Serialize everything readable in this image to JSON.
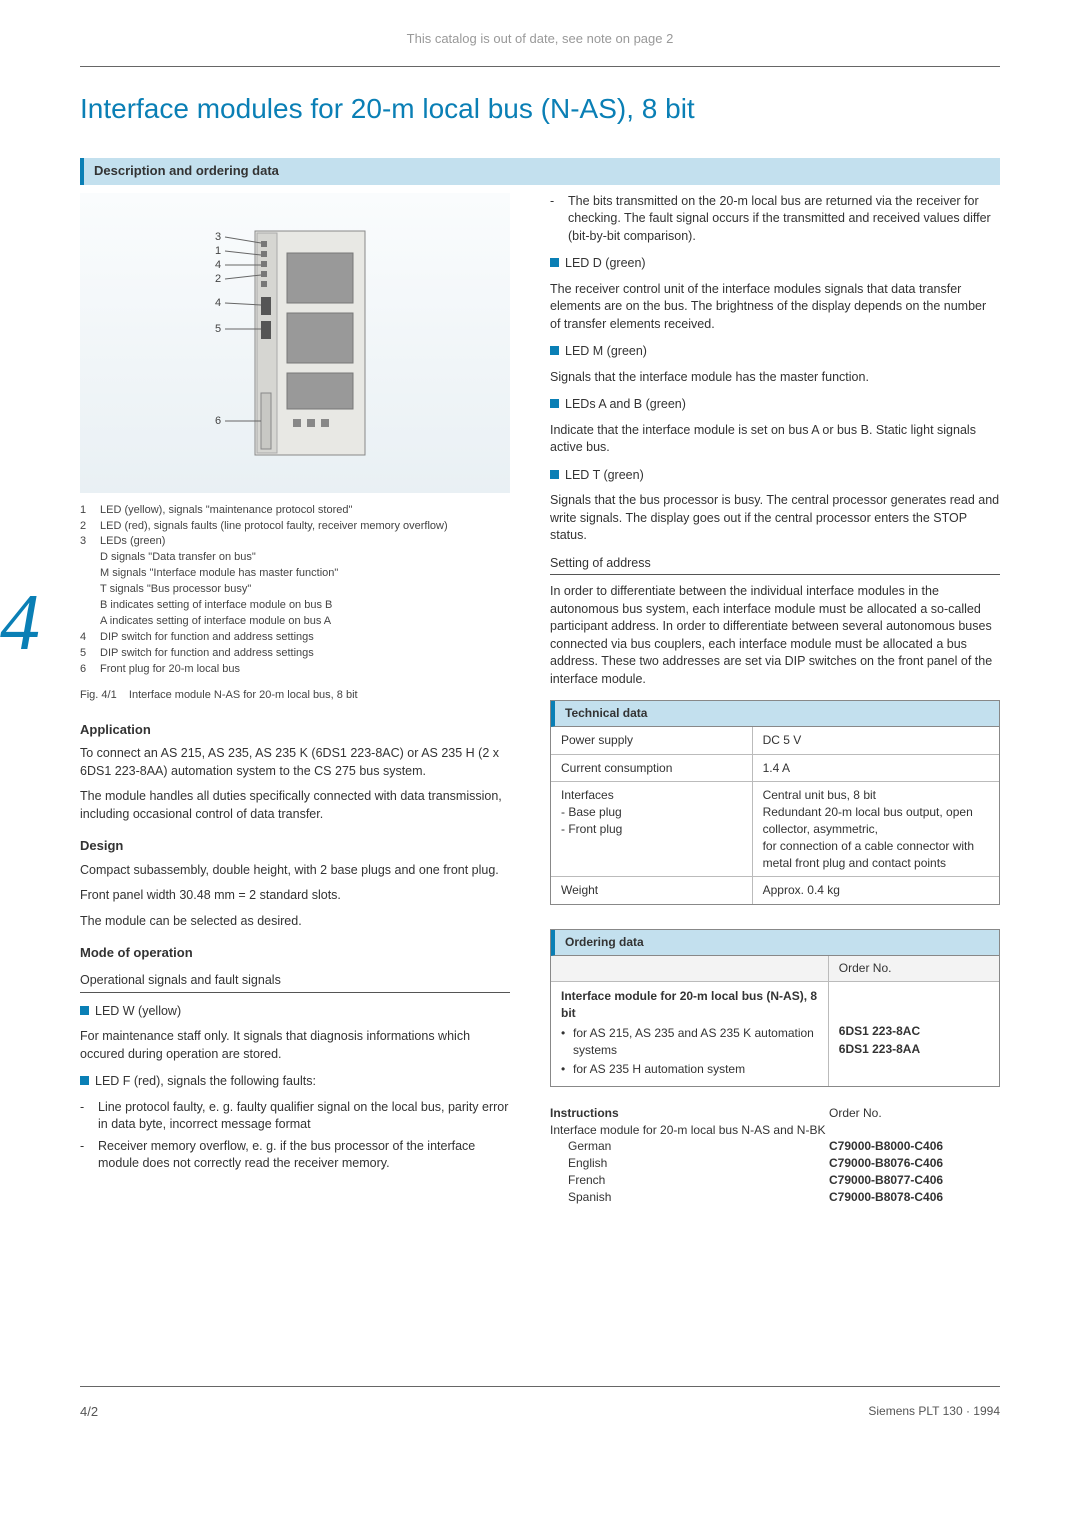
{
  "colors": {
    "accent": "#0a7fb5",
    "section_bg": "#c3e0ee",
    "text": "#333333",
    "muted": "#999999",
    "rule": "#666666",
    "table_border": "#888888"
  },
  "typography": {
    "h1_fontsize_pt": 21,
    "body_fontsize_pt": 9.5,
    "small_fontsize_pt": 8.5
  },
  "header": {
    "outdated_note": "This catalog is out of date, see note on page 2",
    "title": "Interface modules for 20-m local bus (N-AS), 8 bit",
    "section_bar": "Description and ordering data",
    "chapter_number": "4"
  },
  "figure": {
    "callouts": [
      "3",
      "1",
      "4",
      "2",
      "5",
      "6"
    ],
    "legend": [
      {
        "n": "1",
        "t": "LED (yellow), signals \"maintenance protocol stored\""
      },
      {
        "n": "2",
        "t": "LED (red), signals faults (line protocol faulty, receiver memory overflow)"
      },
      {
        "n": "3",
        "t": "LEDs (green)"
      },
      {
        "n": "",
        "t": "D  signals \"Data transfer on bus\"",
        "indent": true
      },
      {
        "n": "",
        "t": "M signals \"Interface module has master function\"",
        "indent": true
      },
      {
        "n": "",
        "t": "T  signals \"Bus processor busy\"",
        "indent": true
      },
      {
        "n": "",
        "t": "B  indicates setting of interface module on bus B",
        "indent": true
      },
      {
        "n": "",
        "t": "A  indicates setting of interface module on bus A",
        "indent": true
      },
      {
        "n": "4",
        "t": "DIP switch for function and address settings"
      },
      {
        "n": "5",
        "t": "DIP switch for function and address settings"
      },
      {
        "n": "6",
        "t": "Front plug for 20-m local bus"
      }
    ],
    "caption_label": "Fig. 4/1",
    "caption_text": "Interface module N-AS for 20-m local bus, 8 bit"
  },
  "left": {
    "application_head": "Application",
    "application_p1": "To connect an AS 215, AS 235, AS 235 K (6DS1 223-8AC) or AS 235 H (2 x  6DS1 223-8AA) automation system to the CS 275 bus system.",
    "application_p2": "The module handles all duties specifically connected with data transmission, including occasional control of data transfer.",
    "design_head": "Design",
    "design_p1": "Compact subassembly, double height, with 2 base plugs and one front plug.",
    "design_p2": "Front panel width 30.48 mm = 2 standard slots.",
    "design_p3": "The module can be selected as desired.",
    "mode_head": "Mode of operation",
    "opsignals_head": "Operational signals and fault signals",
    "led_w_label": "LED W (yellow)",
    "led_w_text": "For maintenance staff only. It signals that diagnosis informations which occured during operation are stored.",
    "led_f_label": "LED F (red), signals the following faults:",
    "led_f_items": [
      "Line protocol faulty, e. g. faulty qualifier signal on the local bus, parity error in data byte, incorrect message format",
      "Receiver memory overflow, e. g. if the bus processor of the interface module does not correctly read the receiver memory."
    ]
  },
  "right": {
    "top_dash": "The bits transmitted on the 20-m local bus are returned via the receiver for checking. The fault signal occurs if the transmitted and received values differ (bit-by-bit comparison).",
    "led_d_label": "LED D (green)",
    "led_d_text": "The receiver control unit of the interface modules signals that data transfer elements are on the bus. The brightness of the display depends on the number of transfer elements received.",
    "led_m_label": "LED M (green)",
    "led_m_text": "Signals that the interface module has the master function.",
    "led_ab_label": "LEDs A and B (green)",
    "led_ab_text": "Indicate that the interface module is set on bus A or bus B. Static light signals active bus.",
    "led_t_label": "LED T (green)",
    "led_t_text": "Signals that the bus processor is busy. The central processor generates read and write signals. The display goes out if the central processor enters the STOP status.",
    "setaddr_head": "Setting of address",
    "setaddr_text": "In order to differentiate between the individual interface modules in the autonomous bus system, each interface module must be allocated a so-called participant address. In order to differentiate between several autonomous buses connected via bus couplers, each interface module must be allocated a bus address. These two addresses are set via DIP switches on the front panel of the interface module."
  },
  "tech": {
    "head": "Technical data",
    "rows": [
      {
        "l": "Power supply",
        "r": "DC 5 V"
      },
      {
        "l": "Current consumption",
        "r": "1.4 A"
      },
      {
        "l": "Interfaces\n- Base plug\n- Front plug",
        "r": "Central unit bus, 8 bit\nRedundant 20-m local bus output, open collector, asymmetric,\nfor connection of a cable connector with metal front plug and contact points"
      },
      {
        "l": "Weight",
        "r": "Approx. 0.4 kg"
      }
    ]
  },
  "order": {
    "head": "Ordering data",
    "col_order": "Order No.",
    "desc_title": "Interface module for 20-m local bus (N-AS), 8 bit",
    "items": [
      {
        "t": "for AS 215, AS 235 and AS 235 K automation systems",
        "no": "6DS1 223-8AC"
      },
      {
        "t": "for AS 235 H automation system",
        "no": "6DS1 223-8AA"
      }
    ]
  },
  "instructions": {
    "title": "Instructions",
    "intro": "Interface module for 20-m local bus N-AS and N-BK",
    "col_order": "Order No.",
    "rows": [
      {
        "lang": "German",
        "no": "C79000-B8000-C406"
      },
      {
        "lang": "English",
        "no": "C79000-B8076-C406"
      },
      {
        "lang": "French",
        "no": "C79000-B8077-C406"
      },
      {
        "lang": "Spanish",
        "no": "C79000-B8078-C406"
      }
    ]
  },
  "footer": {
    "page": "4/2",
    "right": "Siemens PLT 130 · 1994"
  }
}
